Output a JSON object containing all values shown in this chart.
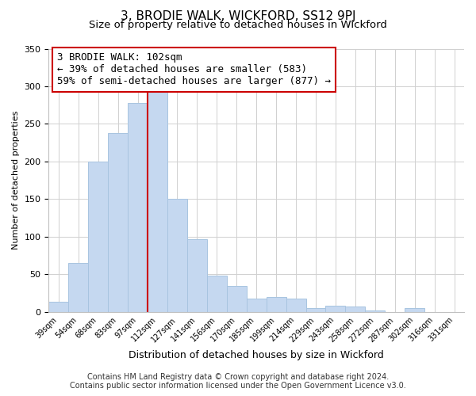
{
  "title": "3, BRODIE WALK, WICKFORD, SS12 9PJ",
  "subtitle": "Size of property relative to detached houses in Wickford",
  "xlabel": "Distribution of detached houses by size in Wickford",
  "ylabel": "Number of detached properties",
  "bar_labels": [
    "39sqm",
    "54sqm",
    "68sqm",
    "83sqm",
    "97sqm",
    "112sqm",
    "127sqm",
    "141sqm",
    "156sqm",
    "170sqm",
    "185sqm",
    "199sqm",
    "214sqm",
    "229sqm",
    "243sqm",
    "258sqm",
    "272sqm",
    "287sqm",
    "302sqm",
    "316sqm",
    "331sqm"
  ],
  "bar_values": [
    13,
    65,
    200,
    238,
    278,
    293,
    150,
    97,
    48,
    35,
    18,
    20,
    18,
    5,
    8,
    7,
    2,
    0,
    5,
    0,
    0
  ],
  "bar_color": "#c5d8f0",
  "bar_edge_color": "#a8c4e0",
  "vline_x": 4.5,
  "vline_color": "#cc0000",
  "ylim": [
    0,
    350
  ],
  "annotation_line1": "3 BRODIE WALK: 102sqm",
  "annotation_line2": "← 39% of detached houses are smaller (583)",
  "annotation_line3": "59% of semi-detached houses are larger (877) →",
  "annotation_box_edgecolor": "#cc0000",
  "footer_line1": "Contains HM Land Registry data © Crown copyright and database right 2024.",
  "footer_line2": "Contains public sector information licensed under the Open Government Licence v3.0.",
  "title_fontsize": 11,
  "subtitle_fontsize": 9.5,
  "annotation_fontsize": 9,
  "ylabel_fontsize": 8,
  "xlabel_fontsize": 9,
  "footer_fontsize": 7
}
